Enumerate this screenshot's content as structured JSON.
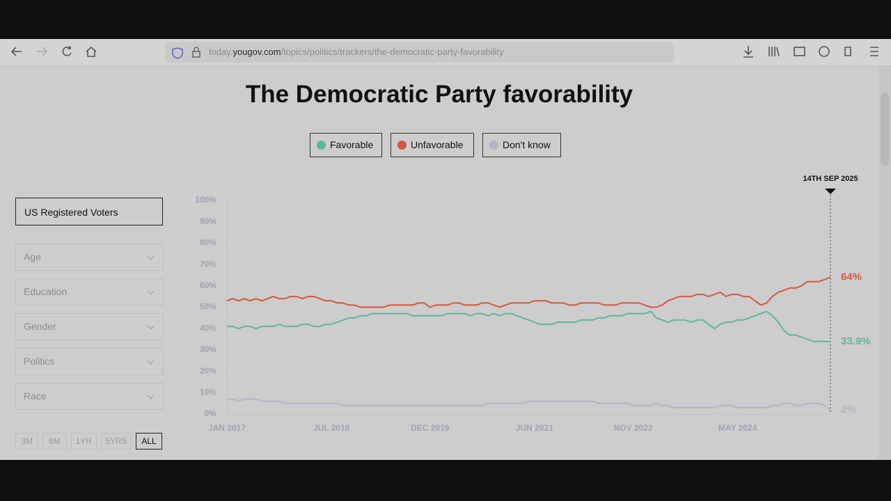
{
  "browser": {
    "url_prefix": "today.",
    "url_domain": "yougov.com",
    "url_path": "/topics/politics/trackers/the-democratic-party-favorability"
  },
  "sidebar": {
    "population": "US Registered Voters",
    "filters": [
      "Age",
      "Education",
      "Gender",
      "Politics",
      "Race"
    ],
    "ranges": [
      "3M",
      "6M",
      "1YR",
      "5YRS",
      "ALL"
    ],
    "active_range": "ALL"
  },
  "chart_data": {
    "type": "line",
    "title": "The Democratic Party favorability",
    "annotation": "14TH SEP 2025",
    "categories": [
      "JAN 2017",
      null,
      null,
      null,
      null,
      null,
      null,
      null,
      null,
      null,
      null,
      null,
      null,
      null,
      null,
      null,
      null,
      null,
      "JUL 2018",
      null,
      null,
      null,
      null,
      null,
      null,
      null,
      null,
      null,
      null,
      null,
      null,
      null,
      null,
      null,
      null,
      "DEC 2019",
      null,
      null,
      null,
      null,
      null,
      null,
      null,
      null,
      null,
      null,
      null,
      null,
      null,
      null,
      null,
      null,
      null,
      "JUN 2021",
      null,
      null,
      null,
      null,
      null,
      null,
      null,
      null,
      null,
      null,
      null,
      null,
      null,
      null,
      null,
      null,
      "NOV 2022",
      null,
      null,
      null,
      null,
      null,
      null,
      null,
      null,
      null,
      null,
      null,
      null,
      null,
      null,
      null,
      null,
      null,
      "MAY 2024",
      null,
      null,
      null,
      null,
      null,
      null,
      null,
      null,
      null,
      null,
      null,
      null,
      null,
      null,
      null,
      null
    ],
    "ylim": [
      0,
      100
    ],
    "yticks": [
      {
        "value": 0,
        "label": "0%"
      },
      {
        "value": 10,
        "label": "10%"
      },
      {
        "value": 20,
        "label": "20%"
      },
      {
        "value": 30,
        "label": "30%"
      },
      {
        "value": 40,
        "label": "40%"
      },
      {
        "value": 50,
        "label": "50%"
      },
      {
        "value": 60,
        "label": "60%"
      },
      {
        "value": 70,
        "label": "70%"
      },
      {
        "value": 80,
        "label": "80%"
      },
      {
        "value": 90,
        "label": "90%"
      },
      {
        "value": 100,
        "label": "100%"
      }
    ],
    "grid": false,
    "series": [
      {
        "name": "Favorable",
        "color": "#5db79f",
        "end_label": "33.9%",
        "values": [
          41,
          41,
          40,
          41,
          41,
          40,
          41,
          41,
          41,
          42,
          41,
          41,
          41,
          42,
          42,
          41,
          41,
          42,
          42,
          43,
          44,
          45,
          45,
          46,
          46,
          47,
          47,
          47,
          47,
          47,
          47,
          47,
          46,
          46,
          46,
          46,
          46,
          46,
          47,
          47,
          47,
          47,
          46,
          47,
          47,
          46,
          47,
          46,
          47,
          47,
          46,
          45,
          44,
          43,
          42,
          42,
          42,
          43,
          43,
          43,
          43,
          44,
          44,
          44,
          45,
          45,
          46,
          46,
          46,
          47,
          47,
          47,
          47,
          48,
          45,
          44,
          43,
          44,
          44,
          44,
          43,
          44,
          44,
          42,
          40,
          42,
          43,
          43,
          44,
          44,
          45,
          46,
          47,
          48,
          46,
          43,
          39,
          37,
          37,
          36,
          35,
          34,
          34,
          34,
          33.9
        ]
      },
      {
        "name": "Unfavorable",
        "color": "#d6573d",
        "end_label": "64%",
        "values": [
          53,
          54,
          53,
          54,
          53,
          54,
          53,
          54,
          55,
          54,
          54,
          55,
          55,
          54,
          55,
          55,
          54,
          53,
          53,
          52,
          52,
          51,
          51,
          50,
          50,
          50,
          50,
          50,
          51,
          51,
          51,
          51,
          51,
          52,
          52,
          50,
          51,
          51,
          51,
          52,
          52,
          51,
          51,
          51,
          52,
          52,
          51,
          50,
          51,
          52,
          52,
          52,
          52,
          53,
          53,
          53,
          52,
          52,
          52,
          51,
          51,
          52,
          52,
          52,
          52,
          51,
          51,
          51,
          52,
          52,
          52,
          52,
          51,
          50,
          50,
          51,
          53,
          54,
          55,
          55,
          55,
          56,
          56,
          55,
          56,
          57,
          55,
          56,
          56,
          55,
          55,
          53,
          51,
          52,
          55,
          57,
          58,
          59,
          59,
          60,
          62,
          62,
          62,
          63,
          64
        ]
      },
      {
        "name": "Don't know",
        "color": "#b5b2c6",
        "end_label": "2%",
        "values": [
          7,
          7,
          6,
          7,
          7,
          7,
          6,
          6,
          6,
          6,
          5,
          5,
          5,
          5,
          5,
          5,
          5,
          5,
          5,
          5,
          4,
          4,
          4,
          4,
          4,
          4,
          4,
          4,
          4,
          4,
          4,
          4,
          4,
          4,
          4,
          4,
          4,
          4,
          4,
          4,
          4,
          4,
          4,
          4,
          4,
          5,
          5,
          5,
          5,
          5,
          5,
          5,
          6,
          6,
          6,
          6,
          6,
          6,
          6,
          6,
          6,
          6,
          6,
          6,
          5,
          5,
          5,
          5,
          5,
          5,
          4,
          4,
          4,
          4,
          5,
          4,
          4,
          3,
          3,
          3,
          3,
          3,
          3,
          3,
          3,
          4,
          4,
          4,
          3,
          3,
          3,
          3,
          3,
          3,
          4,
          4,
          5,
          5,
          4,
          4,
          5,
          5,
          5,
          4,
          2
        ]
      }
    ]
  }
}
